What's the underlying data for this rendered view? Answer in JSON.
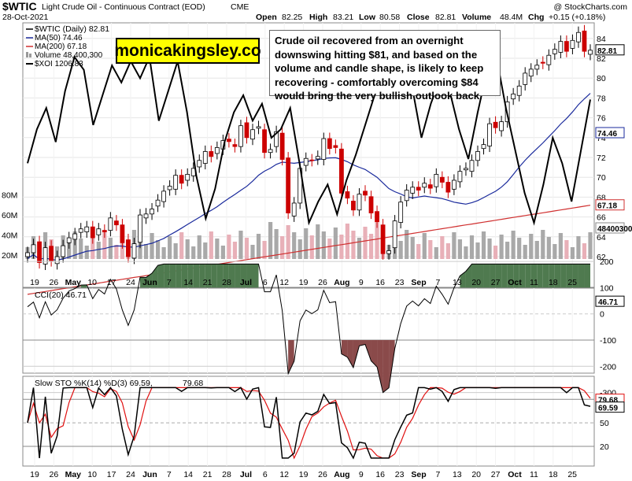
{
  "header": {
    "symbol": "$WTIC",
    "name": "Light Crude Oil - Continuous Contract (EOD)",
    "exchange": "CME",
    "date": "28-Oct-2021",
    "watermark": "@ StockCharts.com",
    "open_label": "Open",
    "open": "82.25",
    "high_label": "High",
    "high": "83.21",
    "low_label": "Low",
    "low": "80.58",
    "close_label": "Close",
    "close": "82.81",
    "volume_label": "Volume",
    "volume": "48.4M",
    "chg_label": "Chg",
    "chg": "+0.15 (+0.18%)"
  },
  "legend": {
    "price": "$WTIC (Daily) 82.81",
    "ma50": "MA(50) 74.46",
    "ma200": "MA(200) 67.18",
    "volume": "Volume 48,400,300",
    "xoi": "$XOI 1206.83"
  },
  "promo_text": "monicakingsley.co",
  "annotation": "Crude oil recovered from an overnight downswing hitting $81, and based on the volume and candle shape, is likely to keep recovering - comfortably overcoming $84 would bring the very bullish outlook back.",
  "colors": {
    "up": "#000000",
    "down": "#cc0000",
    "ma50": "#1a2a9c",
    "ma200": "#d03030",
    "xoi": "#000000",
    "vol_up": "#a9a9a9",
    "vol_down": "#e8b0b8",
    "cci_pos": "#4f7a4f",
    "cci_neg": "#8a4a4a",
    "sto_k": "#000000",
    "sto_d": "#e01010"
  },
  "x_axis": {
    "labels": [
      "19",
      "26",
      "May",
      "10",
      "17",
      "24",
      "Jun",
      "7",
      "14",
      "21",
      "28",
      "Jul",
      "6",
      "12",
      "19",
      "26",
      "Aug",
      "9",
      "16",
      "23",
      "Sep",
      "7",
      "13",
      "20",
      "27",
      "Oct",
      "11",
      "18",
      "25"
    ]
  },
  "price_axis": {
    "ticks": [
      "62",
      "64",
      "66",
      "68",
      "70",
      "72",
      "74",
      "76",
      "78",
      "80",
      "82",
      "84"
    ],
    "volume_ticks": [
      "20M",
      "40M",
      "60M",
      "80M"
    ],
    "tags": {
      "close": "82.81",
      "high": "83.21",
      "ma50": "74.46",
      "ma200": "67.18",
      "volume": "48400300"
    }
  },
  "cci": {
    "label": "CCI(20) 46.71",
    "ticks": [
      "200",
      "100",
      "0",
      "-100",
      "-200",
      "-300"
    ],
    "tag": "46.71"
  },
  "sto": {
    "label_k": "Slow STO %K(14) %D(3) 69.59,",
    "label_d": "79.68",
    "ticks": [
      "80",
      "50",
      "20"
    ],
    "tag_d": "79.68",
    "tag_k": "69.59"
  },
  "chart_data": {
    "type": "line",
    "title": "$WTIC Light Crude Oil - Continuous Contract (EOD)",
    "date_range": [
      "2021-04-16",
      "2021-10-28"
    ],
    "ylim": [
      60,
      86
    ],
    "series": [
      {
        "name": "$WTIC (Daily)",
        "last": 82.81,
        "open": 82.25,
        "high": 83.21,
        "low": 80.58,
        "close": 82.81,
        "values": [
          62.4,
          63.2,
          61.4,
          62.9,
          61.6,
          62.0,
          63.1,
          63.9,
          64.3,
          64.8,
          65.0,
          63.9,
          64.8,
          64.5,
          65.9,
          65.2,
          63.4,
          62.0,
          63.3,
          66.2,
          66.3,
          66.8,
          67.7,
          68.6,
          69.1,
          70.2,
          69.4,
          70.3,
          70.9,
          71.7,
          72.6,
          72.1,
          73.0,
          73.7,
          73.6,
          73.1,
          75.2,
          74.0,
          74.8,
          75.1,
          72.5,
          72.8,
          74.6,
          71.8,
          66.4,
          67.4,
          70.9,
          71.9,
          71.7,
          72.1,
          73.9,
          72.9,
          73.0,
          68.4,
          67.9,
          66.7,
          68.3,
          68.2,
          66.4,
          65.5,
          62.3,
          62.6,
          65.6,
          67.5,
          68.7,
          69.0,
          68.7,
          69.4,
          68.9,
          70.3,
          69.5,
          68.5,
          69.7,
          70.6,
          70.9,
          71.7,
          72.6,
          73.3,
          75.4,
          75.0,
          75.6,
          77.6,
          78.4,
          79.2,
          80.5,
          80.9,
          81.3,
          81.5,
          82.3,
          82.9,
          83.7,
          82.7,
          83.8,
          84.6,
          82.7,
          82.81
        ]
      },
      {
        "name": "MA(50)",
        "last": 74.46
      },
      {
        "name": "MA(200)",
        "last": 67.18
      },
      {
        "name": "Volume",
        "last": 48400300
      },
      {
        "name": "$XOI",
        "last": 1206.83
      },
      {
        "name": "CCI(20)",
        "last": 46.71,
        "ylim": [
          -350,
          250
        ]
      },
      {
        "name": "Slow STO %K(14)",
        "last": 69.59,
        "ylim": [
          0,
          100
        ]
      },
      {
        "name": "%D(3)",
        "last": 79.68
      }
    ]
  }
}
